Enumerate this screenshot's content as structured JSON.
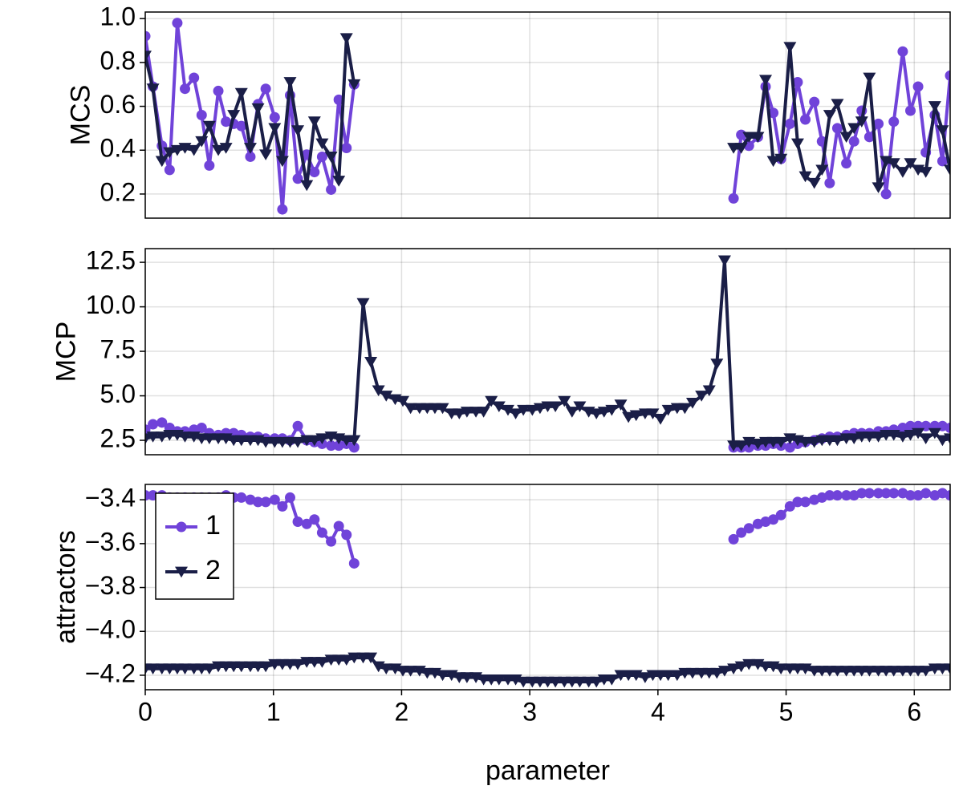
{
  "chart_data": [
    {
      "type": "line",
      "ylabel": "MCS",
      "x": [
        0,
        0.06,
        0.13,
        0.19,
        0.25,
        0.31,
        0.38,
        0.44,
        0.5,
        0.57,
        0.63,
        0.69,
        0.75,
        0.82,
        0.88,
        0.94,
        1.01,
        1.07,
        1.13,
        1.19,
        1.26,
        1.32,
        1.38,
        1.45,
        1.51,
        1.57,
        1.63,
        1.7,
        1.76,
        1.82,
        1.88,
        1.95,
        2.01,
        2.07,
        2.14,
        2.2,
        2.26,
        2.32,
        2.39,
        2.45,
        2.51,
        2.58,
        2.64,
        2.7,
        2.76,
        2.83,
        2.89,
        2.95,
        3.02,
        3.08,
        3.14,
        3.2,
        3.27,
        3.33,
        3.39,
        3.46,
        3.52,
        3.58,
        3.64,
        3.71,
        3.77,
        3.83,
        3.9,
        3.96,
        4.02,
        4.08,
        4.15,
        4.21,
        4.27,
        4.34,
        4.4,
        4.46,
        4.52,
        4.59,
        4.65,
        4.71,
        4.78,
        4.84,
        4.9,
        4.96,
        5.03,
        5.09,
        5.15,
        5.22,
        5.28,
        5.34,
        5.4,
        5.47,
        5.53,
        5.59,
        5.65,
        5.72,
        5.78,
        5.84,
        5.91,
        5.97,
        6.03,
        6.09,
        6.16,
        6.22,
        6.28
      ],
      "series": [
        {
          "name": "1",
          "color": "#7043d9",
          "marker": "circle",
          "values": [
            0.92,
            0.69,
            0.42,
            0.31,
            0.98,
            0.68,
            0.73,
            0.56,
            0.33,
            0.67,
            0.53,
            0.52,
            0.51,
            0.37,
            0.61,
            0.68,
            0.55,
            0.13,
            0.65,
            0.27,
            0.38,
            0.3,
            0.37,
            0.22,
            0.63,
            0.41,
            0.7,
            null,
            null,
            null,
            null,
            null,
            null,
            null,
            null,
            null,
            null,
            null,
            null,
            null,
            null,
            null,
            null,
            null,
            null,
            null,
            null,
            null,
            null,
            null,
            null,
            null,
            null,
            null,
            null,
            null,
            null,
            null,
            null,
            null,
            null,
            null,
            null,
            null,
            null,
            null,
            null,
            null,
            null,
            null,
            null,
            null,
            null,
            0.18,
            0.47,
            0.42,
            0.46,
            0.69,
            0.57,
            0.36,
            0.52,
            0.71,
            0.54,
            0.62,
            0.44,
            0.25,
            0.5,
            0.34,
            0.44,
            0.58,
            0.46,
            0.52,
            0.2,
            0.53,
            0.85,
            0.58,
            0.69,
            0.39,
            0.56,
            0.35,
            0.74
          ]
        },
        {
          "name": "2",
          "color": "#1a1e47",
          "marker": "triangle-down",
          "values": [
            0.83,
            0.68,
            0.35,
            0.39,
            0.4,
            0.41,
            0.4,
            0.44,
            0.51,
            0.4,
            0.41,
            0.56,
            0.66,
            0.41,
            0.59,
            0.38,
            0.5,
            0.35,
            0.71,
            0.49,
            0.24,
            0.53,
            0.43,
            0.37,
            0.26,
            0.91,
            0.7,
            null,
            null,
            null,
            null,
            null,
            null,
            null,
            null,
            null,
            null,
            null,
            null,
            null,
            null,
            null,
            null,
            null,
            null,
            null,
            null,
            null,
            null,
            null,
            null,
            null,
            null,
            null,
            null,
            null,
            null,
            null,
            null,
            null,
            null,
            null,
            null,
            null,
            null,
            null,
            null,
            null,
            null,
            null,
            null,
            null,
            null,
            0.41,
            0.41,
            0.46,
            0.46,
            0.72,
            0.35,
            0.36,
            0.87,
            0.43,
            0.28,
            0.25,
            0.31,
            0.56,
            0.61,
            0.46,
            0.5,
            0.53,
            0.73,
            0.23,
            0.35,
            0.34,
            0.3,
            0.34,
            0.31,
            0.3,
            0.6,
            0.49,
            0.31
          ]
        }
      ],
      "xlim": [
        0,
        6.28
      ],
      "xticks": [
        0,
        1,
        2,
        3,
        4,
        5,
        6
      ],
      "ylim": [
        0.09,
        1.03
      ],
      "yticks": [
        0.2,
        0.4,
        0.6,
        0.8,
        {
          "value": 1,
          "label": "1.0"
        }
      ],
      "grid": true
    },
    {
      "type": "line",
      "ylabel": "MCP",
      "x": [
        0,
        0.06,
        0.13,
        0.19,
        0.25,
        0.31,
        0.38,
        0.44,
        0.5,
        0.57,
        0.63,
        0.69,
        0.75,
        0.82,
        0.88,
        0.94,
        1.01,
        1.07,
        1.13,
        1.19,
        1.26,
        1.32,
        1.38,
        1.45,
        1.51,
        1.57,
        1.63,
        1.7,
        1.76,
        1.82,
        1.88,
        1.95,
        2.01,
        2.07,
        2.14,
        2.2,
        2.26,
        2.32,
        2.39,
        2.45,
        2.51,
        2.58,
        2.64,
        2.7,
        2.76,
        2.83,
        2.89,
        2.95,
        3.02,
        3.08,
        3.14,
        3.2,
        3.27,
        3.33,
        3.39,
        3.46,
        3.52,
        3.58,
        3.64,
        3.71,
        3.77,
        3.83,
        3.9,
        3.96,
        4.02,
        4.08,
        4.15,
        4.21,
        4.27,
        4.34,
        4.4,
        4.46,
        4.52,
        4.59,
        4.65,
        4.71,
        4.78,
        4.84,
        4.9,
        4.96,
        5.03,
        5.09,
        5.15,
        5.22,
        5.28,
        5.34,
        5.4,
        5.47,
        5.53,
        5.59,
        5.65,
        5.72,
        5.78,
        5.84,
        5.91,
        5.97,
        6.03,
        6.09,
        6.16,
        6.22,
        6.28
      ],
      "series": [
        {
          "name": "1",
          "color": "#7043d9",
          "marker": "circle",
          "values": [
            3.1,
            3.4,
            3.5,
            3.2,
            3.0,
            3.0,
            3.1,
            3.2,
            2.9,
            2.8,
            2.9,
            2.9,
            2.8,
            2.7,
            2.7,
            2.6,
            2.6,
            2.6,
            2.5,
            3.3,
            2.5,
            2.4,
            2.3,
            2.2,
            2.2,
            2.3,
            2.1,
            null,
            null,
            null,
            null,
            null,
            null,
            null,
            null,
            null,
            null,
            null,
            null,
            null,
            null,
            null,
            null,
            null,
            null,
            null,
            null,
            null,
            null,
            null,
            null,
            null,
            null,
            null,
            null,
            null,
            null,
            null,
            null,
            null,
            null,
            null,
            null,
            null,
            null,
            null,
            null,
            null,
            null,
            null,
            null,
            null,
            null,
            2.1,
            2.1,
            2.1,
            2.2,
            2.2,
            2.3,
            2.2,
            2.1,
            2.3,
            2.4,
            2.5,
            2.6,
            2.7,
            2.7,
            2.8,
            2.9,
            2.9,
            2.9,
            3.0,
            3.0,
            3.1,
            3.2,
            3.3,
            3.3,
            3.3,
            3.3,
            3.3,
            3.2
          ]
        },
        {
          "name": "2",
          "color": "#1a1e47",
          "marker": "triangle-down",
          "values": [
            2.6,
            2.7,
            2.7,
            2.8,
            2.8,
            2.7,
            2.7,
            2.6,
            2.6,
            2.6,
            2.6,
            2.5,
            2.5,
            2.5,
            2.5,
            2.4,
            2.4,
            2.4,
            2.4,
            2.4,
            2.5,
            2.5,
            2.6,
            2.7,
            2.6,
            2.5,
            2.5,
            10.2,
            6.9,
            5.3,
            5.0,
            4.8,
            4.7,
            4.3,
            4.3,
            4.3,
            4.3,
            4.3,
            4.0,
            4.0,
            4.1,
            4.1,
            4.1,
            4.7,
            4.4,
            4.2,
            4.0,
            4.2,
            4.2,
            4.3,
            4.4,
            4.4,
            4.7,
            4.1,
            4.4,
            4.1,
            4.0,
            4.1,
            4.2,
            4.5,
            3.8,
            3.9,
            4.0,
            4.0,
            3.7,
            4.2,
            4.3,
            4.3,
            4.6,
            5.0,
            5.3,
            6.8,
            12.6,
            2.2,
            2.2,
            2.4,
            2.3,
            2.4,
            2.4,
            2.4,
            2.6,
            2.5,
            2.4,
            2.4,
            2.5,
            2.5,
            2.5,
            2.6,
            2.6,
            2.7,
            2.7,
            2.7,
            2.8,
            2.8,
            2.7,
            2.8,
            2.9,
            2.6,
            2.9,
            2.5,
            2.6
          ]
        }
      ],
      "xlim": [
        0,
        6.28
      ],
      "xticks": [
        0,
        1,
        2,
        3,
        4,
        5,
        6
      ],
      "ylim": [
        1.69,
        13.27
      ],
      "yticks": [
        2.5,
        {
          "value": 5,
          "label": "5.0"
        },
        7.5,
        {
          "value": 10,
          "label": "10.0"
        },
        12.5
      ],
      "grid": true
    },
    {
      "type": "line",
      "ylabel": "attractors",
      "xlabel": "parameter",
      "legend": "upper left",
      "x": [
        0,
        0.06,
        0.13,
        0.19,
        0.25,
        0.31,
        0.38,
        0.44,
        0.5,
        0.57,
        0.63,
        0.69,
        0.75,
        0.82,
        0.88,
        0.94,
        1.01,
        1.07,
        1.13,
        1.19,
        1.26,
        1.32,
        1.38,
        1.45,
        1.51,
        1.57,
        1.63,
        1.7,
        1.76,
        1.82,
        1.88,
        1.95,
        2.01,
        2.07,
        2.14,
        2.2,
        2.26,
        2.32,
        2.39,
        2.45,
        2.51,
        2.58,
        2.64,
        2.7,
        2.76,
        2.83,
        2.89,
        2.95,
        3.02,
        3.08,
        3.14,
        3.2,
        3.27,
        3.33,
        3.39,
        3.46,
        3.52,
        3.58,
        3.64,
        3.71,
        3.77,
        3.83,
        3.9,
        3.96,
        4.02,
        4.08,
        4.15,
        4.21,
        4.27,
        4.34,
        4.4,
        4.46,
        4.52,
        4.59,
        4.65,
        4.71,
        4.78,
        4.84,
        4.9,
        4.96,
        5.03,
        5.09,
        5.15,
        5.22,
        5.28,
        5.34,
        5.4,
        5.47,
        5.53,
        5.59,
        5.65,
        5.72,
        5.78,
        5.84,
        5.91,
        5.97,
        6.03,
        6.09,
        6.16,
        6.22,
        6.28
      ],
      "series": [
        {
          "name": "1",
          "color": "#7043d9",
          "marker": "circle",
          "values": [
            -3.38,
            -3.38,
            -3.38,
            -3.39,
            -3.39,
            -3.39,
            -3.39,
            -3.39,
            -3.39,
            -3.39,
            -3.38,
            -3.39,
            -3.39,
            -3.4,
            -3.41,
            -3.41,
            -3.4,
            -3.43,
            -3.39,
            -3.5,
            -3.51,
            -3.49,
            -3.55,
            -3.59,
            -3.52,
            -3.56,
            -3.69,
            null,
            null,
            null,
            null,
            null,
            null,
            null,
            null,
            null,
            null,
            null,
            null,
            null,
            null,
            null,
            null,
            null,
            null,
            null,
            null,
            null,
            null,
            null,
            null,
            null,
            null,
            null,
            null,
            null,
            null,
            null,
            null,
            null,
            null,
            null,
            null,
            null,
            null,
            null,
            null,
            null,
            null,
            null,
            null,
            null,
            null,
            -3.58,
            -3.55,
            -3.53,
            -3.51,
            -3.5,
            -3.49,
            -3.47,
            -3.43,
            -3.41,
            -3.41,
            -3.4,
            -3.39,
            -3.38,
            -3.38,
            -3.38,
            -3.38,
            -3.37,
            -3.37,
            -3.37,
            -3.37,
            -3.37,
            -3.37,
            -3.38,
            -3.38,
            -3.37,
            -3.38,
            -3.37,
            -3.38
          ]
        },
        {
          "name": "2",
          "color": "#1a1e47",
          "marker": "triangle-down",
          "values": [
            -4.17,
            -4.17,
            -4.17,
            -4.17,
            -4.17,
            -4.17,
            -4.17,
            -4.17,
            -4.17,
            -4.16,
            -4.16,
            -4.16,
            -4.16,
            -4.16,
            -4.16,
            -4.16,
            -4.15,
            -4.15,
            -4.15,
            -4.15,
            -4.14,
            -4.14,
            -4.14,
            -4.13,
            -4.13,
            -4.13,
            -4.12,
            -4.12,
            -4.12,
            -4.16,
            -4.17,
            -4.17,
            -4.18,
            -4.18,
            -4.18,
            -4.19,
            -4.19,
            -4.2,
            -4.2,
            -4.21,
            -4.21,
            -4.21,
            -4.22,
            -4.22,
            -4.22,
            -4.22,
            -4.22,
            -4.23,
            -4.23,
            -4.23,
            -4.23,
            -4.23,
            -4.23,
            -4.23,
            -4.23,
            -4.23,
            -4.23,
            -4.22,
            -4.22,
            -4.2,
            -4.2,
            -4.2,
            -4.21,
            -4.2,
            -4.2,
            -4.2,
            -4.2,
            -4.19,
            -4.19,
            -4.19,
            -4.19,
            -4.19,
            -4.18,
            -4.17,
            -4.16,
            -4.15,
            -4.15,
            -4.16,
            -4.16,
            -4.17,
            -4.17,
            -4.17,
            -4.17,
            -4.18,
            -4.18,
            -4.18,
            -4.18,
            -4.18,
            -4.18,
            -4.18,
            -4.18,
            -4.18,
            -4.18,
            -4.18,
            -4.18,
            -4.18,
            -4.18,
            -4.18,
            -4.17,
            -4.17,
            -4.17
          ]
        }
      ],
      "xlim": [
        0,
        6.28
      ],
      "xticks": [
        0,
        1,
        2,
        3,
        4,
        5,
        6
      ],
      "ylim": [
        -4.266,
        -3.33
      ],
      "yticks": [
        {
          "value": -4.2,
          "label": "−4.2"
        },
        {
          "value": -4,
          "label": "−4.0"
        },
        {
          "value": -3.8,
          "label": "−3.8"
        },
        {
          "value": -3.6,
          "label": "−3.6"
        },
        {
          "value": -3.4,
          "label": "−3.4"
        }
      ],
      "grid": true
    }
  ]
}
